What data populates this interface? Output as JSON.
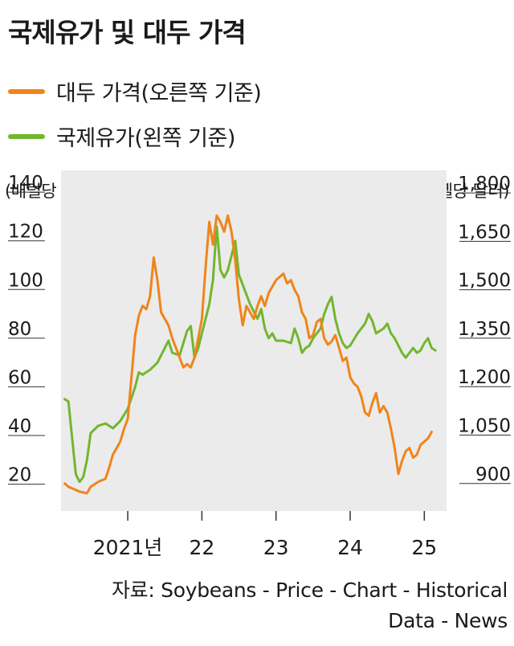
{
  "title": "국제유가 및 대두 가격",
  "legend": [
    {
      "label": "대두 가격(오른쪽 기준)",
      "color": "#f0841c"
    },
    {
      "label": "국제유가(왼쪽 기준)",
      "color": "#72b62e"
    }
  ],
  "left_axis_unit": "(배럴당 달러)",
  "right_axis_unit": "(부셸당 달러)",
  "source_line1": "자료: Soybeans - Price - Chart - Historical",
  "source_line2": "Data - News",
  "chart_data": {
    "type": "line",
    "plot_background": "#ebebeb",
    "x_range": [
      2020.1,
      2025.3
    ],
    "x_ticks": [
      {
        "value": 2021.0,
        "label": "2021년"
      },
      {
        "value": 2022.0,
        "label": "22"
      },
      {
        "value": 2023.0,
        "label": "23"
      },
      {
        "value": 2024.0,
        "label": "24"
      },
      {
        "value": 2025.0,
        "label": "25"
      }
    ],
    "y_left": {
      "range": [
        5,
        145
      ],
      "ticks": [
        "140",
        "120",
        "100",
        "80",
        "60",
        "40",
        "20"
      ],
      "tick_values": [
        140,
        120,
        100,
        80,
        60,
        40,
        20
      ]
    },
    "y_right": {
      "range": [
        785,
        1840
      ],
      "ticks": [
        "1,800",
        "1,650",
        "1,500",
        "1,350",
        "1,200",
        "1,050",
        "900"
      ],
      "tick_values": [
        1800,
        1650,
        1500,
        1350,
        1200,
        1050,
        900
      ]
    },
    "series": [
      {
        "name": "국제유가(왼쪽 기준)",
        "axis": "left",
        "color": "#72b62e",
        "points": [
          [
            2020.15,
            51
          ],
          [
            2020.2,
            50
          ],
          [
            2020.25,
            35
          ],
          [
            2020.3,
            20
          ],
          [
            2020.35,
            17
          ],
          [
            2020.4,
            19
          ],
          [
            2020.45,
            26
          ],
          [
            2020.5,
            37
          ],
          [
            2020.6,
            40
          ],
          [
            2020.7,
            41
          ],
          [
            2020.8,
            39
          ],
          [
            2020.9,
            42
          ],
          [
            2021.0,
            47
          ],
          [
            2021.1,
            56
          ],
          [
            2021.15,
            62
          ],
          [
            2021.2,
            61
          ],
          [
            2021.3,
            63
          ],
          [
            2021.4,
            66
          ],
          [
            2021.5,
            72
          ],
          [
            2021.55,
            75
          ],
          [
            2021.6,
            70
          ],
          [
            2021.7,
            69
          ],
          [
            2021.8,
            79
          ],
          [
            2021.85,
            81
          ],
          [
            2021.9,
            68
          ],
          [
            2021.95,
            72
          ],
          [
            2022.0,
            78
          ],
          [
            2022.1,
            90
          ],
          [
            2022.15,
            100
          ],
          [
            2022.2,
            122
          ],
          [
            2022.25,
            104
          ],
          [
            2022.3,
            101
          ],
          [
            2022.35,
            104
          ],
          [
            2022.4,
            110
          ],
          [
            2022.45,
            116
          ],
          [
            2022.5,
            102
          ],
          [
            2022.55,
            98
          ],
          [
            2022.6,
            94
          ],
          [
            2022.65,
            90
          ],
          [
            2022.7,
            87
          ],
          [
            2022.75,
            84
          ],
          [
            2022.8,
            88
          ],
          [
            2022.85,
            80
          ],
          [
            2022.9,
            76
          ],
          [
            2022.95,
            78
          ],
          [
            2023.0,
            75
          ],
          [
            2023.1,
            75
          ],
          [
            2023.2,
            74
          ],
          [
            2023.25,
            80
          ],
          [
            2023.3,
            76
          ],
          [
            2023.35,
            70
          ],
          [
            2023.4,
            72
          ],
          [
            2023.45,
            73
          ],
          [
            2023.5,
            76
          ],
          [
            2023.6,
            80
          ],
          [
            2023.65,
            86
          ],
          [
            2023.7,
            90
          ],
          [
            2023.75,
            93
          ],
          [
            2023.8,
            84
          ],
          [
            2023.85,
            78
          ],
          [
            2023.9,
            74
          ],
          [
            2023.95,
            72
          ],
          [
            2024.0,
            73
          ],
          [
            2024.1,
            78
          ],
          [
            2024.2,
            82
          ],
          [
            2024.25,
            86
          ],
          [
            2024.3,
            83
          ],
          [
            2024.35,
            78
          ],
          [
            2024.45,
            80
          ],
          [
            2024.5,
            82
          ],
          [
            2024.55,
            78
          ],
          [
            2024.6,
            76
          ],
          [
            2024.65,
            73
          ],
          [
            2024.7,
            70
          ],
          [
            2024.75,
            68
          ],
          [
            2024.8,
            70
          ],
          [
            2024.85,
            72
          ],
          [
            2024.9,
            70
          ],
          [
            2024.95,
            71
          ],
          [
            2025.0,
            74
          ],
          [
            2025.05,
            76
          ],
          [
            2025.1,
            72
          ],
          [
            2025.15,
            71
          ]
        ]
      },
      {
        "name": "대두 가격(오른쪽 기준)",
        "axis": "right",
        "color": "#f0841c",
        "points": [
          [
            2020.15,
            870
          ],
          [
            2020.2,
            860
          ],
          [
            2020.3,
            850
          ],
          [
            2020.35,
            845
          ],
          [
            2020.45,
            840
          ],
          [
            2020.5,
            860
          ],
          [
            2020.6,
            875
          ],
          [
            2020.7,
            885
          ],
          [
            2020.75,
            920
          ],
          [
            2020.8,
            960
          ],
          [
            2020.9,
            1000
          ],
          [
            2020.95,
            1040
          ],
          [
            2021.0,
            1070
          ],
          [
            2021.05,
            1200
          ],
          [
            2021.1,
            1330
          ],
          [
            2021.15,
            1390
          ],
          [
            2021.2,
            1420
          ],
          [
            2021.25,
            1410
          ],
          [
            2021.3,
            1450
          ],
          [
            2021.35,
            1570
          ],
          [
            2021.4,
            1500
          ],
          [
            2021.45,
            1400
          ],
          [
            2021.5,
            1380
          ],
          [
            2021.55,
            1360
          ],
          [
            2021.6,
            1320
          ],
          [
            2021.65,
            1290
          ],
          [
            2021.7,
            1260
          ],
          [
            2021.75,
            1230
          ],
          [
            2021.8,
            1240
          ],
          [
            2021.85,
            1230
          ],
          [
            2021.9,
            1260
          ],
          [
            2021.95,
            1320
          ],
          [
            2022.0,
            1380
          ],
          [
            2022.05,
            1540
          ],
          [
            2022.1,
            1680
          ],
          [
            2022.15,
            1610
          ],
          [
            2022.2,
            1700
          ],
          [
            2022.25,
            1680
          ],
          [
            2022.3,
            1650
          ],
          [
            2022.35,
            1700
          ],
          [
            2022.4,
            1650
          ],
          [
            2022.45,
            1560
          ],
          [
            2022.5,
            1440
          ],
          [
            2022.55,
            1360
          ],
          [
            2022.6,
            1420
          ],
          [
            2022.65,
            1400
          ],
          [
            2022.7,
            1380
          ],
          [
            2022.75,
            1420
          ],
          [
            2022.8,
            1450
          ],
          [
            2022.85,
            1420
          ],
          [
            2022.9,
            1460
          ],
          [
            2022.95,
            1480
          ],
          [
            2023.0,
            1500
          ],
          [
            2023.05,
            1510
          ],
          [
            2023.1,
            1520
          ],
          [
            2023.15,
            1490
          ],
          [
            2023.2,
            1500
          ],
          [
            2023.25,
            1470
          ],
          [
            2023.3,
            1450
          ],
          [
            2023.35,
            1400
          ],
          [
            2023.4,
            1380
          ],
          [
            2023.45,
            1320
          ],
          [
            2023.5,
            1330
          ],
          [
            2023.55,
            1370
          ],
          [
            2023.6,
            1380
          ],
          [
            2023.65,
            1320
          ],
          [
            2023.7,
            1300
          ],
          [
            2023.75,
            1310
          ],
          [
            2023.8,
            1330
          ],
          [
            2023.85,
            1290
          ],
          [
            2023.9,
            1250
          ],
          [
            2023.95,
            1260
          ],
          [
            2024.0,
            1200
          ],
          [
            2024.05,
            1180
          ],
          [
            2024.1,
            1170
          ],
          [
            2024.15,
            1140
          ],
          [
            2024.2,
            1090
          ],
          [
            2024.25,
            1080
          ],
          [
            2024.3,
            1120
          ],
          [
            2024.35,
            1150
          ],
          [
            2024.4,
            1090
          ],
          [
            2024.45,
            1110
          ],
          [
            2024.5,
            1090
          ],
          [
            2024.55,
            1040
          ],
          [
            2024.6,
            980
          ],
          [
            2024.65,
            900
          ],
          [
            2024.7,
            940
          ],
          [
            2024.75,
            970
          ],
          [
            2024.8,
            980
          ],
          [
            2024.85,
            950
          ],
          [
            2024.9,
            960
          ],
          [
            2024.95,
            990
          ],
          [
            2025.0,
            1000
          ],
          [
            2025.05,
            1010
          ],
          [
            2025.1,
            1030
          ]
        ]
      }
    ]
  }
}
